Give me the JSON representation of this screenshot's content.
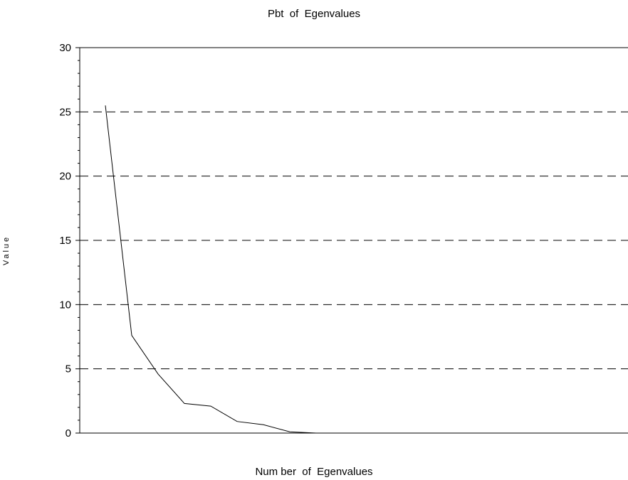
{
  "chart_data": {
    "type": "line",
    "title": "Pbt  of  Egenvalues",
    "xlabel": "Num ber  of  Egenvalues",
    "ylabel": "Value",
    "ylim": [
      0,
      30
    ],
    "yticks": [
      "0",
      "5",
      "10",
      "15",
      "20",
      "25",
      "30"
    ],
    "ytick_values": [
      0,
      5,
      10,
      15,
      20,
      25,
      30
    ],
    "grid": "dashed horizontal at major y ticks",
    "series": [
      {
        "x": [
          1,
          2,
          3,
          4,
          5,
          6,
          7,
          8,
          9,
          10,
          11,
          12,
          13,
          14,
          15,
          16,
          17,
          18,
          19,
          20,
          21
        ],
        "values": [
          25.5,
          7.6,
          4.6,
          2.3,
          2.1,
          0.9,
          0.65,
          0.1,
          0.0,
          0.0,
          0.0,
          0.0,
          0.0,
          0.0,
          0.0,
          0.0,
          0.0,
          0.0,
          0.0,
          0.0,
          0.0
        ]
      }
    ],
    "colors": {
      "line": "#000000",
      "grid": "#000000"
    }
  }
}
